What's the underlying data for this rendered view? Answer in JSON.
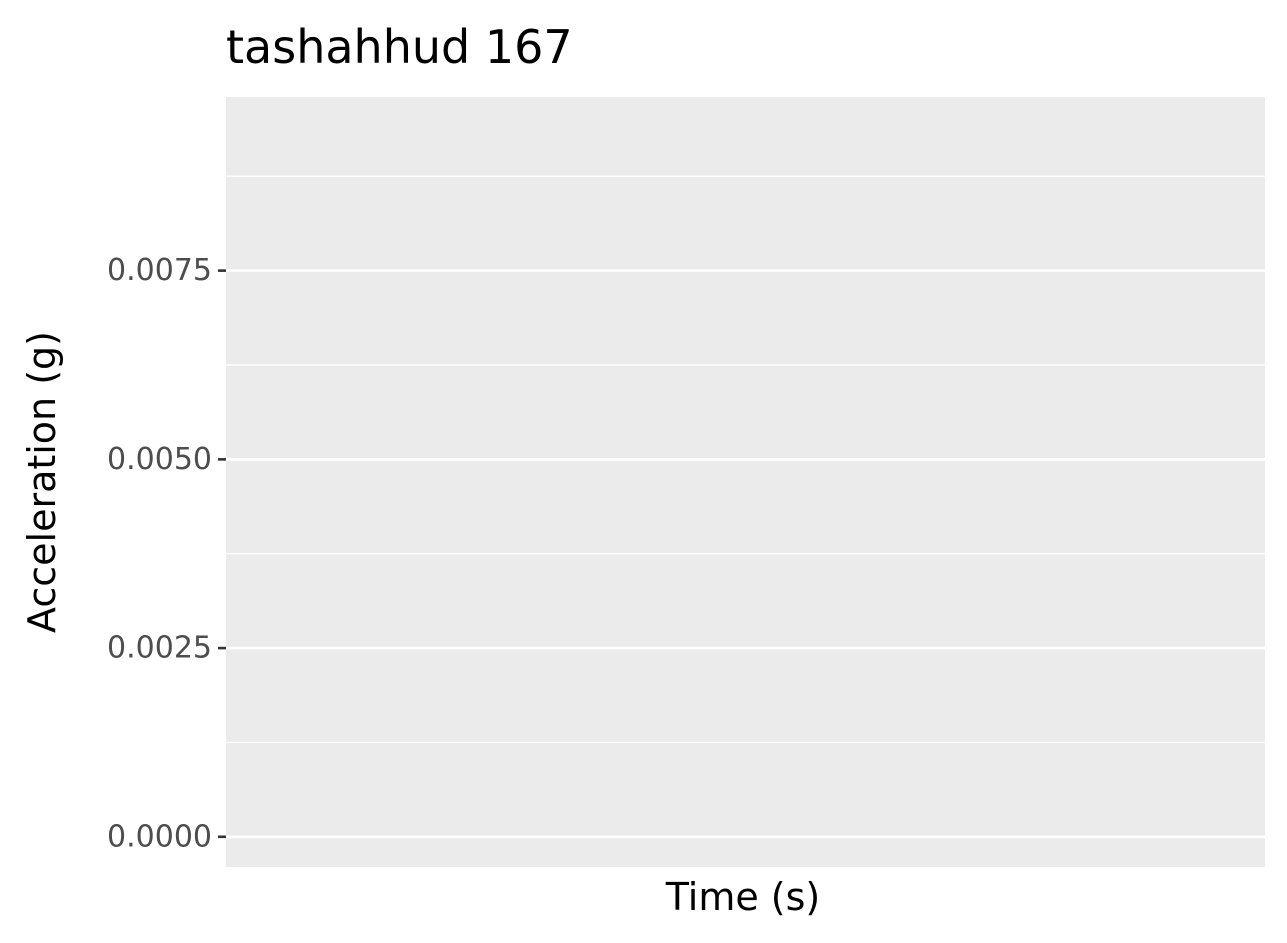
{
  "chart_data": {
    "type": "line",
    "title": "tashahhud 167",
    "xlabel": "Time (s)",
    "ylabel": "Acceleration (g)",
    "x": [],
    "series": [],
    "ylim": [
      -0.0004,
      0.0098
    ],
    "y_ticks": [
      0.0,
      0.0025,
      0.005,
      0.0075
    ],
    "y_tick_labels": [
      "0.0000",
      "0.0025",
      "0.0050",
      "0.0075"
    ],
    "y_minor_ticks": [
      0.00125,
      0.00375,
      0.00625,
      0.00875
    ],
    "x_ticks": [],
    "grid": true,
    "legend": "none",
    "colors": {
      "panel_background": "#ebebeb",
      "grid_major": "#ffffff",
      "grid_minor": "#ffffff",
      "tick_label": "#4d4d4d",
      "tick_mark": "#333333",
      "text": "#000000"
    }
  }
}
